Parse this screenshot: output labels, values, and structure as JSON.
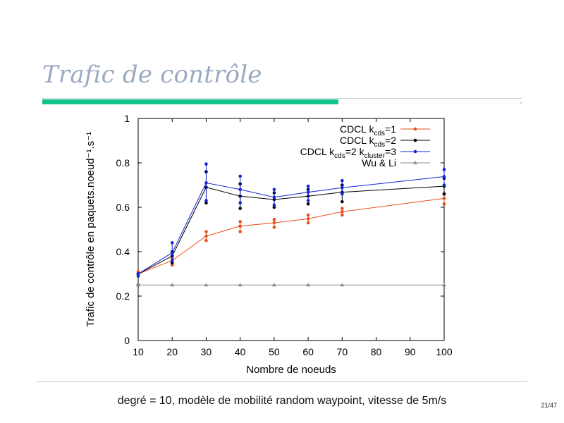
{
  "slide": {
    "title": "Trafic de contrôle",
    "caption": "degré = 10, modèle de mobilité random waypoint, vitesse de 5m/s",
    "page_number": "21/47"
  },
  "colors": {
    "title": "#9aa9c2",
    "title_bar": "#12c28d",
    "series_orange": "#e8501c",
    "series_black": "#000000",
    "series_blue": "#1226d6",
    "series_gray": "#8c8c8c"
  },
  "chart_data": {
    "type": "line",
    "xlabel": "Nombre de noeuds",
    "ylabel": "Trafic de contrôle en paquets.noeud⁻¹.s⁻¹",
    "xlim": [
      10,
      100
    ],
    "ylim": [
      0,
      1
    ],
    "xticks": [
      10,
      20,
      30,
      40,
      50,
      60,
      70,
      80,
      90,
      100
    ],
    "yticks": [
      0,
      0.2,
      0.4,
      0.6,
      0.8,
      1
    ],
    "legend_position": "top-right",
    "grid": false,
    "series": [
      {
        "name": "CDCL k_cds=1",
        "legend_parts": [
          [
            "CDCL k",
            ""
          ],
          [
            "cds",
            "sub"
          ],
          [
            "=1",
            ""
          ]
        ],
        "color": "#e8501c",
        "marker": "dot",
        "x": [
          10,
          20,
          30,
          40,
          50,
          60,
          70,
          100
        ],
        "y": [
          0.3,
          0.36,
          0.47,
          0.515,
          0.53,
          0.548,
          0.58,
          0.64
        ],
        "samples": [
          [
            0.31,
            0.3
          ],
          [
            0.34,
            0.37
          ],
          [
            0.45,
            0.49
          ],
          [
            0.49,
            0.535
          ],
          [
            0.51,
            0.545
          ],
          [
            0.53,
            0.565
          ],
          [
            0.565,
            0.595
          ],
          [
            0.615,
            0.66
          ]
        ]
      },
      {
        "name": "CDCL k_cds=2",
        "legend_parts": [
          [
            "CDCL k",
            ""
          ],
          [
            "cds",
            "sub"
          ],
          [
            "=2",
            ""
          ]
        ],
        "color": "#000000",
        "marker": "dot",
        "x": [
          10,
          20,
          30,
          40,
          50,
          60,
          70,
          100
        ],
        "y": [
          0.3,
          0.38,
          0.69,
          0.65,
          0.635,
          0.65,
          0.668,
          0.695
        ],
        "samples": [
          [
            0.25,
            0.3
          ],
          [
            0.35,
            0.4
          ],
          [
            0.62,
            0.76
          ],
          [
            0.595,
            0.705
          ],
          [
            0.6,
            0.665
          ],
          [
            0.615,
            0.68
          ],
          [
            0.625,
            0.7
          ],
          [
            0.66,
            0.73
          ]
        ]
      },
      {
        "name": "CDCL k_cds=2 k_cluster=3",
        "legend_parts": [
          [
            "CDCL k",
            ""
          ],
          [
            "cds",
            "sub"
          ],
          [
            "=2 k",
            ""
          ],
          [
            "cluster",
            "sub"
          ],
          [
            "=3",
            ""
          ]
        ],
        "color": "#1226d6",
        "marker": "dot",
        "x": [
          10,
          20,
          30,
          40,
          50,
          60,
          70,
          100
        ],
        "y": [
          0.3,
          0.395,
          0.71,
          0.68,
          0.645,
          0.668,
          0.688,
          0.738
        ],
        "samples": [
          [
            0.3,
            0.29
          ],
          [
            0.36,
            0.44
          ],
          [
            0.63,
            0.795
          ],
          [
            0.62,
            0.74
          ],
          [
            0.61,
            0.68
          ],
          [
            0.63,
            0.695
          ],
          [
            0.66,
            0.72
          ],
          [
            0.7,
            0.77
          ]
        ]
      },
      {
        "name": "Wu & Li",
        "legend_parts": [
          [
            "Wu & Li",
            ""
          ]
        ],
        "color": "#8c8c8c",
        "marker": "triangle",
        "x": [
          10,
          20,
          30,
          40,
          50,
          60,
          70,
          100
        ],
        "y": [
          0.25,
          0.25,
          0.25,
          0.25,
          0.25,
          0.25,
          0.25,
          0.25
        ],
        "samples": []
      }
    ]
  }
}
